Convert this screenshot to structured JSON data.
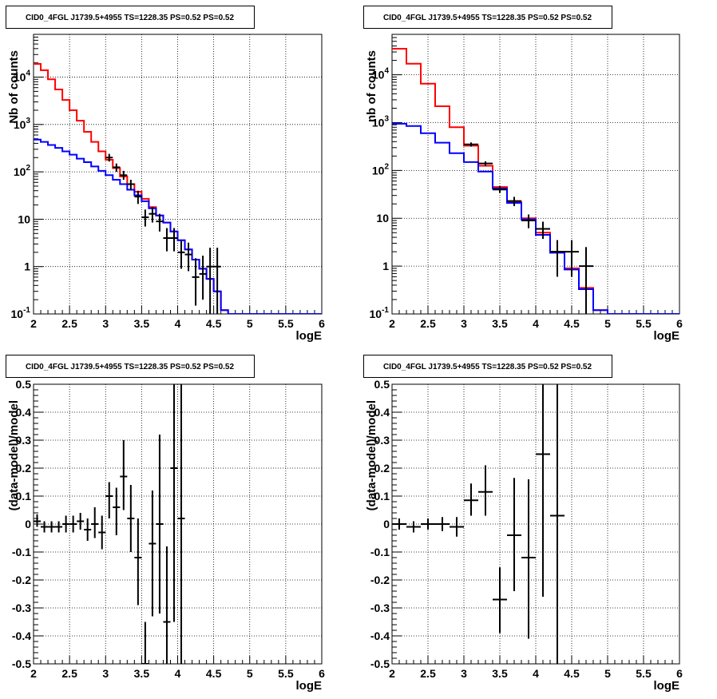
{
  "chart_data": [
    {
      "type": "line",
      "title": "CID0_4FGL J1739.5+4955 TS=1228.35 PS=0.52 PS=0.52",
      "xlabel": "logE",
      "ylabel": "Nb of counts",
      "xlim": [
        2,
        6
      ],
      "ylim": [
        0.1,
        80000
      ],
      "yscale": "log",
      "grid": true,
      "x_ticks": [
        "2",
        "2.5",
        "3",
        "3.5",
        "4",
        "4.5",
        "5",
        "5.5",
        "6"
      ],
      "y_ticks": [
        "10^-1",
        "1",
        "10",
        "10^2",
        "10^3",
        "10^4"
      ],
      "bin_edges": [
        2.0,
        2.1,
        2.2,
        2.3,
        2.4,
        2.5,
        2.6,
        2.7,
        2.8,
        2.9,
        3.0,
        3.1,
        3.2,
        3.3,
        3.4,
        3.5,
        3.6,
        3.7,
        3.8,
        3.9,
        4.0,
        4.1,
        4.2,
        4.3,
        4.4,
        4.5,
        4.6,
        4.7,
        4.8,
        4.9,
        5.0,
        5.1,
        5.2,
        5.3,
        5.4,
        5.5,
        5.6,
        5.7,
        5.8,
        5.9,
        6.0
      ],
      "series": [
        {
          "color": "#ff0000",
          "kind": "histogram",
          "values": [
            19000,
            14000,
            9000,
            5500,
            3300,
            2000,
            1200,
            700,
            430,
            270,
            180,
            120,
            80,
            55,
            38,
            27,
            18,
            12,
            8.5,
            5.5,
            3.6,
            2.3,
            1.4,
            0.9,
            0.55,
            0.3,
            0.12,
            0.1,
            0.1,
            0.1,
            0.1,
            0.1,
            0.1,
            0.1,
            0.1,
            0.1,
            0.1,
            0.1,
            0.1,
            0.1
          ]
        },
        {
          "color": "#0000ff",
          "kind": "histogram",
          "values": [
            480,
            430,
            370,
            320,
            270,
            230,
            190,
            160,
            130,
            105,
            85,
            68,
            55,
            42,
            32,
            24,
            17,
            12,
            8.5,
            5.5,
            3.6,
            2.3,
            1.4,
            0.9,
            0.55,
            0.3,
            0.12,
            0.1,
            0.1,
            0.1,
            0.1,
            0.1,
            0.1,
            0.1,
            0.1,
            0.1,
            0.1,
            0.1,
            0.1,
            0.1
          ]
        },
        {
          "color": "#000000",
          "kind": "points",
          "x": [
            3.05,
            3.15,
            3.25,
            3.35,
            3.45,
            3.55,
            3.65,
            3.75,
            3.85,
            3.95,
            4.05,
            4.15,
            4.25,
            4.35,
            4.45,
            4.55
          ],
          "y": [
            200,
            125,
            85,
            55,
            30,
            11,
            13,
            9,
            4,
            4,
            2,
            1.8,
            0.6,
            0.7,
            1,
            1
          ],
          "ylo": [
            165,
            100,
            68,
            42,
            21,
            7,
            8.5,
            5.5,
            2.1,
            2.1,
            0.9,
            0.8,
            0.15,
            0.2,
            0.1,
            0.1
          ],
          "yhi": [
            240,
            150,
            105,
            68,
            40,
            16,
            18,
            13,
            6.5,
            6.5,
            3.5,
            3.2,
            1.5,
            1.7,
            2.5,
            2.5
          ]
        }
      ]
    },
    {
      "type": "line",
      "title": "CID0_4FGL J1739.5+4955 TS=1228.35 PS=0.52 PS=0.52",
      "xlabel": "logE",
      "ylabel": "nb of counts",
      "xlim": [
        2,
        6
      ],
      "ylim": [
        0.1,
        70000
      ],
      "yscale": "log",
      "grid": true,
      "x_ticks": [
        "2",
        "2.5",
        "3",
        "3.5",
        "4",
        "4.5",
        "5",
        "5.5",
        "6"
      ],
      "y_ticks": [
        "10^-1",
        "1",
        "10",
        "10^2",
        "10^3",
        "10^4"
      ],
      "bin_edges": [
        2.0,
        2.2,
        2.4,
        2.6,
        2.8,
        3.0,
        3.2,
        3.4,
        3.6,
        3.8,
        4.0,
        4.2,
        4.4,
        4.6,
        4.8,
        5.0,
        5.2,
        5.4,
        5.6,
        5.8,
        6.0
      ],
      "series": [
        {
          "color": "#ff0000",
          "kind": "histogram",
          "values": [
            35000,
            17000,
            6500,
            2200,
            800,
            330,
            125,
            45,
            22,
            10,
            5,
            2,
            0.9,
            0.35,
            0.12,
            0.1,
            0.1,
            0.1,
            0.1,
            0.1
          ]
        },
        {
          "color": "#0000ff",
          "kind": "histogram",
          "values": [
            950,
            850,
            600,
            380,
            230,
            150,
            95,
            42,
            21,
            9.5,
            4.5,
            1.9,
            0.85,
            0.33,
            0.12,
            0.1,
            0.1,
            0.1,
            0.1,
            0.1
          ]
        },
        {
          "color": "#000000",
          "kind": "points",
          "x": [
            3.1,
            3.3,
            3.5,
            3.7,
            3.9,
            4.1,
            4.3,
            4.5,
            4.7
          ],
          "y": [
            350,
            140,
            40,
            23,
            9,
            6,
            2,
            2,
            1
          ],
          "ylo": [
            315,
            125,
            34,
            18,
            6.2,
            3.7,
            0.6,
            0.6,
            0.1
          ],
          "yhi": [
            385,
            155,
            47,
            28,
            12,
            8.5,
            3.5,
            3.5,
            2.5
          ]
        }
      ]
    },
    {
      "type": "scatter",
      "title": "CID0_4FGL J1739.5+4955 TS=1228.35 PS=0.52 PS=0.52",
      "xlabel": "logE",
      "ylabel": "(data-model)/model",
      "xlim": [
        2,
        6
      ],
      "ylim": [
        -0.5,
        0.5
      ],
      "grid": true,
      "x_ticks": [
        "2",
        "2.5",
        "3",
        "3.5",
        "4",
        "4.5",
        "5",
        "5.5",
        "6"
      ],
      "y_ticks": [
        "-0.5",
        "-0.4",
        "-0.3",
        "-0.2",
        "-0.1",
        "0",
        "0.1",
        "0.2",
        "0.3",
        "0.4",
        "0.5"
      ],
      "x_half_width": 0.05,
      "points": {
        "x": [
          2.05,
          2.15,
          2.25,
          2.35,
          2.45,
          2.55,
          2.65,
          2.75,
          2.85,
          2.95,
          3.05,
          3.15,
          3.25,
          3.35,
          3.45,
          3.55,
          3.65,
          3.75,
          3.85,
          3.95,
          4.05
        ],
        "y": [
          0.01,
          -0.01,
          -0.01,
          -0.01,
          0.0,
          0.0,
          0.01,
          -0.02,
          0.0,
          -0.03,
          0.1,
          0.06,
          0.17,
          0.02,
          -0.12,
          -0.5,
          -0.07,
          0.0,
          -0.35,
          0.2,
          0.02
        ],
        "ylo": [
          -0.01,
          -0.03,
          -0.03,
          -0.03,
          -0.03,
          -0.03,
          -0.02,
          -0.06,
          -0.05,
          -0.09,
          0.02,
          -0.04,
          0.05,
          -0.1,
          -0.29,
          -0.6,
          -0.33,
          -0.32,
          -0.6,
          -0.35,
          -0.6
        ],
        "yhi": [
          0.035,
          0.01,
          0.01,
          0.01,
          0.03,
          0.03,
          0.04,
          0.02,
          0.06,
          0.03,
          0.15,
          0.13,
          0.3,
          0.14,
          0.02,
          -0.35,
          0.12,
          0.32,
          -0.08,
          0.6,
          0.6
        ]
      }
    },
    {
      "type": "scatter",
      "title": "CID0_4FGL J1739.5+4955 TS=1228.35 PS=0.52 PS=0.52",
      "xlabel": "logE",
      "ylabel": "(data-model)/model",
      "xlim": [
        2,
        6
      ],
      "ylim": [
        -0.5,
        0.5
      ],
      "grid": true,
      "x_ticks": [
        "2",
        "2.5",
        "3",
        "3.5",
        "4",
        "4.5",
        "5",
        "5.5",
        "6"
      ],
      "y_ticks": [
        "-0.5",
        "-0.4",
        "-0.3",
        "-0.2",
        "-0.1",
        "0",
        "0.1",
        "0.2",
        "0.3",
        "0.4",
        "0.5"
      ],
      "x_half_width": 0.1,
      "points": {
        "x": [
          2.1,
          2.3,
          2.5,
          2.7,
          2.9,
          3.1,
          3.3,
          3.5,
          3.7,
          3.9,
          4.1,
          4.3
        ],
        "y": [
          0.0,
          -0.01,
          0.0,
          0.0,
          -0.01,
          0.085,
          0.115,
          -0.27,
          -0.04,
          -0.12,
          0.25,
          0.03
        ],
        "ylo": [
          -0.02,
          -0.03,
          -0.02,
          -0.025,
          -0.045,
          0.03,
          0.03,
          -0.39,
          -0.24,
          -0.41,
          -0.26,
          -0.6
        ],
        "yhi": [
          0.02,
          0.01,
          0.02,
          0.025,
          0.025,
          0.145,
          0.21,
          -0.155,
          0.165,
          0.16,
          0.6,
          0.6
        ]
      }
    }
  ]
}
